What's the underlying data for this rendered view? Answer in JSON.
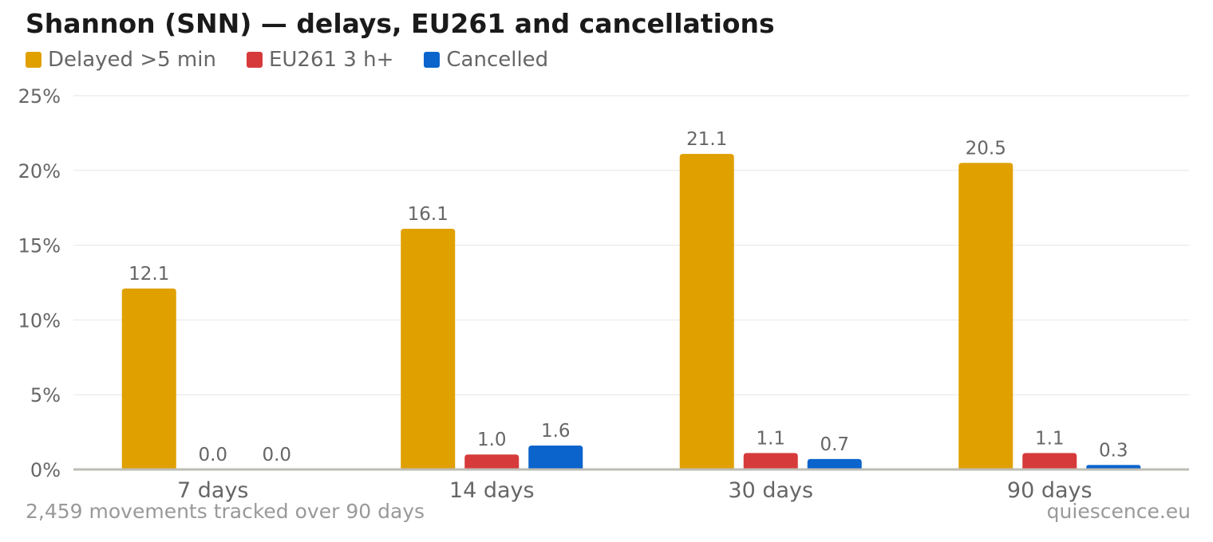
{
  "chart_data": {
    "type": "bar",
    "title": "Shannon (SNN) — delays, EU261 and cancellations",
    "categories": [
      "7 days",
      "14 days",
      "30 days",
      "90 days"
    ],
    "series": [
      {
        "name": "Delayed >5 min",
        "color": "#e0a000",
        "values": [
          12.1,
          16.1,
          21.1,
          20.5
        ],
        "labels": [
          "12.1",
          "16.1",
          "21.1",
          "20.5"
        ]
      },
      {
        "name": "EU261 3 h+",
        "color": "#d63a3a",
        "values": [
          0.0,
          1.0,
          1.1,
          1.1
        ],
        "labels": [
          "0.0",
          "1.0",
          "1.1",
          "1.1"
        ]
      },
      {
        "name": "Cancelled",
        "color": "#0a64cc",
        "values": [
          0.0,
          1.6,
          0.7,
          0.3
        ],
        "labels": [
          "0.0",
          "1.6",
          "0.7",
          "0.3"
        ]
      }
    ],
    "yticks": [
      "0%",
      "5%",
      "10%",
      "15%",
      "20%",
      "25%"
    ],
    "ytick_values": [
      0,
      5,
      10,
      15,
      20,
      25
    ],
    "ylim": [
      0,
      25
    ],
    "grid": true,
    "legend_position": "top-left"
  },
  "footnote": "2,459 movements tracked over 90 days",
  "source": "quiescence.eu"
}
